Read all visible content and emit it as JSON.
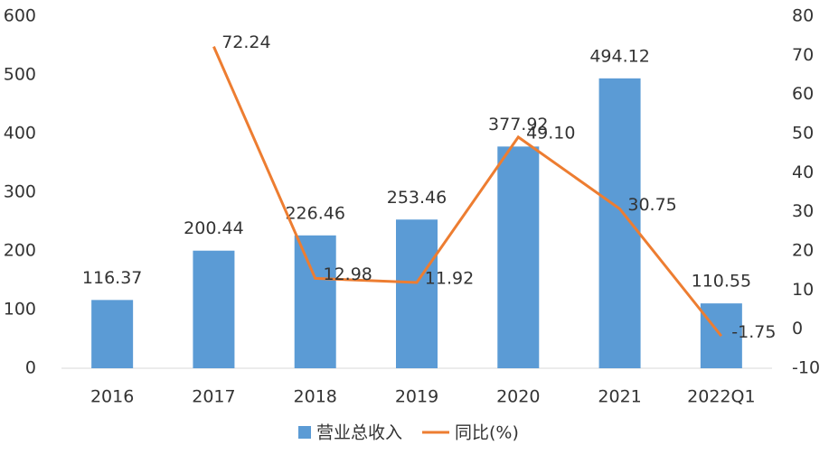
{
  "chart_data": {
    "type": "combo",
    "categories": [
      "2016",
      "2017",
      "2018",
      "2019",
      "2020",
      "2021",
      "2022Q1"
    ],
    "series": [
      {
        "name": "营业总收入",
        "type": "bar",
        "color": "#5b9bd5",
        "values": [
          116.37,
          200.44,
          226.46,
          253.46,
          377.92,
          494.12,
          110.55
        ]
      },
      {
        "name": "同比(%)",
        "type": "line",
        "axis": "y2",
        "color": "#ed7d31",
        "values": [
          null,
          72.24,
          12.98,
          11.92,
          49.1,
          30.75,
          -1.75
        ],
        "value_labels": [
          null,
          "72.24",
          "12.98",
          "11.92",
          "49.10",
          "30.75",
          "-1.75"
        ]
      }
    ],
    "ylim": [
      0,
      600
    ],
    "yticks": [
      0,
      100,
      200,
      300,
      400,
      500,
      600
    ],
    "y2lim": [
      -10,
      80
    ],
    "y2ticks": [
      -10,
      0,
      10,
      20,
      30,
      40,
      50,
      60,
      70,
      80
    ],
    "legend": "bottom"
  }
}
